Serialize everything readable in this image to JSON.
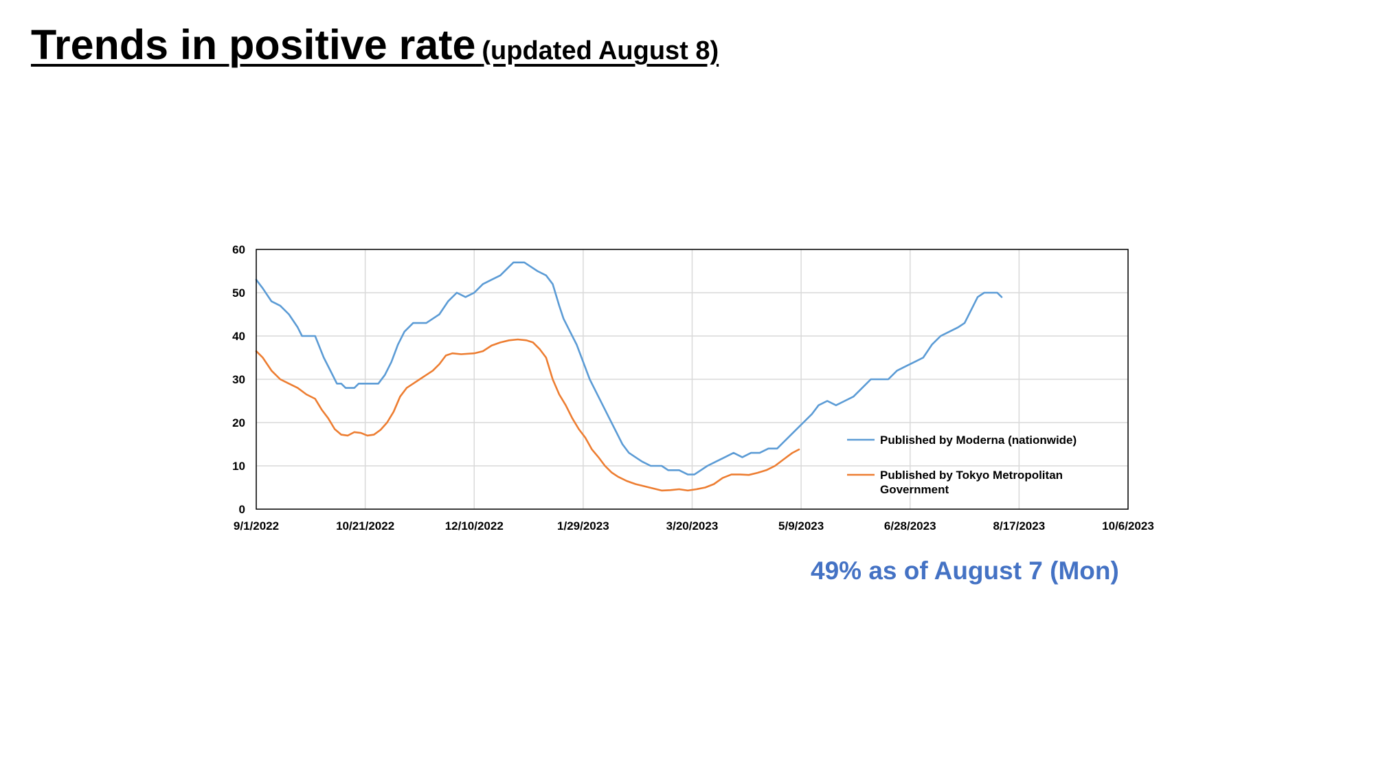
{
  "slide": {
    "title": "Trends in positive rate",
    "subtitle": "(updated August 8)",
    "footnote": "49% as of August 7 (Mon)",
    "footnote_color": "#4472C4"
  },
  "chart_data": {
    "type": "line",
    "title": "",
    "xlabel": "",
    "ylabel": "",
    "ylim": [
      0,
      60
    ],
    "xlim": [
      "2022-09-01",
      "2023-10-06"
    ],
    "y_ticks": [
      0,
      10,
      20,
      30,
      40,
      50,
      60
    ],
    "x_ticks": [
      {
        "date": "2022-09-01",
        "label": "9/1/2022"
      },
      {
        "date": "2022-10-21",
        "label": "10/21/2022"
      },
      {
        "date": "2022-12-10",
        "label": "12/10/2022"
      },
      {
        "date": "2023-01-29",
        "label": "1/29/2023"
      },
      {
        "date": "2023-03-20",
        "label": "3/20/2023"
      },
      {
        "date": "2023-05-09",
        "label": "5/9/2023"
      },
      {
        "date": "2023-06-28",
        "label": "6/28/2023"
      },
      {
        "date": "2023-08-17",
        "label": "8/17/2023"
      },
      {
        "date": "2023-10-06",
        "label": "10/6/2023"
      }
    ],
    "grid": true,
    "legend_position": "right",
    "series": [
      {
        "name": "Published by Moderna (nationwide)",
        "label_lines": [
          "Published by Moderna (nationwide)"
        ],
        "color": "#5B9BD5",
        "points": [
          [
            "2022-09-01",
            53
          ],
          [
            "2022-09-04",
            51
          ],
          [
            "2022-09-08",
            48
          ],
          [
            "2022-09-12",
            47
          ],
          [
            "2022-09-16",
            45
          ],
          [
            "2022-09-20",
            42
          ],
          [
            "2022-09-22",
            40
          ],
          [
            "2022-09-28",
            40
          ],
          [
            "2022-10-02",
            35
          ],
          [
            "2022-10-05",
            32
          ],
          [
            "2022-10-08",
            29
          ],
          [
            "2022-10-10",
            29
          ],
          [
            "2022-10-12",
            28
          ],
          [
            "2022-10-16",
            28
          ],
          [
            "2022-10-18",
            29
          ],
          [
            "2022-10-25",
            29
          ],
          [
            "2022-10-27",
            29
          ],
          [
            "2022-10-30",
            31
          ],
          [
            "2022-11-02",
            34
          ],
          [
            "2022-11-05",
            38
          ],
          [
            "2022-11-08",
            41
          ],
          [
            "2022-11-12",
            43
          ],
          [
            "2022-11-18",
            43
          ],
          [
            "2022-11-24",
            45
          ],
          [
            "2022-11-28",
            48
          ],
          [
            "2022-12-02",
            50
          ],
          [
            "2022-12-06",
            49
          ],
          [
            "2022-12-10",
            50
          ],
          [
            "2022-12-14",
            52
          ],
          [
            "2022-12-18",
            53
          ],
          [
            "2022-12-22",
            54
          ],
          [
            "2022-12-26",
            56
          ],
          [
            "2022-12-28",
            57
          ],
          [
            "2023-01-02",
            57
          ],
          [
            "2023-01-05",
            56
          ],
          [
            "2023-01-08",
            55
          ],
          [
            "2023-01-12",
            54
          ],
          [
            "2023-01-15",
            52
          ],
          [
            "2023-01-18",
            47
          ],
          [
            "2023-01-20",
            44
          ],
          [
            "2023-01-23",
            41
          ],
          [
            "2023-01-26",
            38
          ],
          [
            "2023-01-29",
            34
          ],
          [
            "2023-02-01",
            30
          ],
          [
            "2023-02-04",
            27
          ],
          [
            "2023-02-07",
            24
          ],
          [
            "2023-02-10",
            21
          ],
          [
            "2023-02-13",
            18
          ],
          [
            "2023-02-16",
            15
          ],
          [
            "2023-02-19",
            13
          ],
          [
            "2023-02-22",
            12
          ],
          [
            "2023-02-25",
            11
          ],
          [
            "2023-03-01",
            10
          ],
          [
            "2023-03-06",
            10
          ],
          [
            "2023-03-09",
            9
          ],
          [
            "2023-03-14",
            9
          ],
          [
            "2023-03-18",
            8
          ],
          [
            "2023-03-21",
            8
          ],
          [
            "2023-03-24",
            9
          ],
          [
            "2023-03-27",
            10
          ],
          [
            "2023-03-31",
            11
          ],
          [
            "2023-04-04",
            12
          ],
          [
            "2023-04-08",
            13
          ],
          [
            "2023-04-12",
            12
          ],
          [
            "2023-04-16",
            13
          ],
          [
            "2023-04-20",
            13
          ],
          [
            "2023-04-24",
            14
          ],
          [
            "2023-04-28",
            14
          ],
          [
            "2023-05-02",
            16
          ],
          [
            "2023-05-06",
            18
          ],
          [
            "2023-05-10",
            20
          ],
          [
            "2023-05-14",
            22
          ],
          [
            "2023-05-17",
            24
          ],
          [
            "2023-05-21",
            25
          ],
          [
            "2023-05-25",
            24
          ],
          [
            "2023-05-29",
            25
          ],
          [
            "2023-06-02",
            26
          ],
          [
            "2023-06-06",
            28
          ],
          [
            "2023-06-10",
            30
          ],
          [
            "2023-06-14",
            30
          ],
          [
            "2023-06-18",
            30
          ],
          [
            "2023-06-22",
            32
          ],
          [
            "2023-06-26",
            33
          ],
          [
            "2023-06-30",
            34
          ],
          [
            "2023-07-04",
            35
          ],
          [
            "2023-07-08",
            38
          ],
          [
            "2023-07-12",
            40
          ],
          [
            "2023-07-16",
            41
          ],
          [
            "2023-07-20",
            42
          ],
          [
            "2023-07-23",
            43
          ],
          [
            "2023-07-26",
            46
          ],
          [
            "2023-07-29",
            49
          ],
          [
            "2023-08-01",
            50
          ],
          [
            "2023-08-04",
            50
          ],
          [
            "2023-08-07",
            50
          ],
          [
            "2023-08-09",
            49
          ]
        ]
      },
      {
        "name": "Published by Tokyo Metropolitan Government",
        "label_lines": [
          "Published by Tokyo Metropolitan",
          "Government"
        ],
        "color": "#ED7D31",
        "points": [
          [
            "2022-09-01",
            36.5
          ],
          [
            "2022-09-04",
            35
          ],
          [
            "2022-09-08",
            32
          ],
          [
            "2022-09-12",
            30
          ],
          [
            "2022-09-16",
            29
          ],
          [
            "2022-09-20",
            28
          ],
          [
            "2022-09-24",
            26.5
          ],
          [
            "2022-09-28",
            25.5
          ],
          [
            "2022-10-01",
            23
          ],
          [
            "2022-10-04",
            21
          ],
          [
            "2022-10-07",
            18.5
          ],
          [
            "2022-10-10",
            17.2
          ],
          [
            "2022-10-13",
            17
          ],
          [
            "2022-10-16",
            17.8
          ],
          [
            "2022-10-19",
            17.6
          ],
          [
            "2022-10-22",
            17
          ],
          [
            "2022-10-25",
            17.2
          ],
          [
            "2022-10-28",
            18.3
          ],
          [
            "2022-10-31",
            20
          ],
          [
            "2022-11-03",
            22.5
          ],
          [
            "2022-11-06",
            26
          ],
          [
            "2022-11-09",
            28
          ],
          [
            "2022-11-12",
            29
          ],
          [
            "2022-11-15",
            30
          ],
          [
            "2022-11-18",
            31
          ],
          [
            "2022-11-21",
            32
          ],
          [
            "2022-11-24",
            33.5
          ],
          [
            "2022-11-27",
            35.5
          ],
          [
            "2022-11-30",
            36
          ],
          [
            "2022-12-04",
            35.8
          ],
          [
            "2022-12-10",
            36
          ],
          [
            "2022-12-14",
            36.5
          ],
          [
            "2022-12-18",
            37.8
          ],
          [
            "2022-12-22",
            38.5
          ],
          [
            "2022-12-26",
            39
          ],
          [
            "2022-12-30",
            39.2
          ],
          [
            "2023-01-03",
            39
          ],
          [
            "2023-01-06",
            38.5
          ],
          [
            "2023-01-09",
            37
          ],
          [
            "2023-01-12",
            35
          ],
          [
            "2023-01-15",
            30
          ],
          [
            "2023-01-18",
            26.5
          ],
          [
            "2023-01-21",
            24
          ],
          [
            "2023-01-24",
            21
          ],
          [
            "2023-01-27",
            18.5
          ],
          [
            "2023-01-30",
            16.5
          ],
          [
            "2023-02-02",
            13.8
          ],
          [
            "2023-02-05",
            12
          ],
          [
            "2023-02-08",
            10
          ],
          [
            "2023-02-11",
            8.5
          ],
          [
            "2023-02-14",
            7.5
          ],
          [
            "2023-02-18",
            6.5
          ],
          [
            "2023-02-22",
            5.8
          ],
          [
            "2023-02-26",
            5.3
          ],
          [
            "2023-03-02",
            4.8
          ],
          [
            "2023-03-06",
            4.3
          ],
          [
            "2023-03-10",
            4.4
          ],
          [
            "2023-03-14",
            4.6
          ],
          [
            "2023-03-18",
            4.3
          ],
          [
            "2023-03-22",
            4.6
          ],
          [
            "2023-03-26",
            5
          ],
          [
            "2023-03-30",
            5.8
          ],
          [
            "2023-04-03",
            7.2
          ],
          [
            "2023-04-07",
            8
          ],
          [
            "2023-04-11",
            8
          ],
          [
            "2023-04-15",
            7.9
          ],
          [
            "2023-04-19",
            8.4
          ],
          [
            "2023-04-23",
            9
          ],
          [
            "2023-04-27",
            10
          ],
          [
            "2023-05-01",
            11.5
          ],
          [
            "2023-05-05",
            13
          ],
          [
            "2023-05-08",
            13.8
          ]
        ]
      }
    ]
  }
}
